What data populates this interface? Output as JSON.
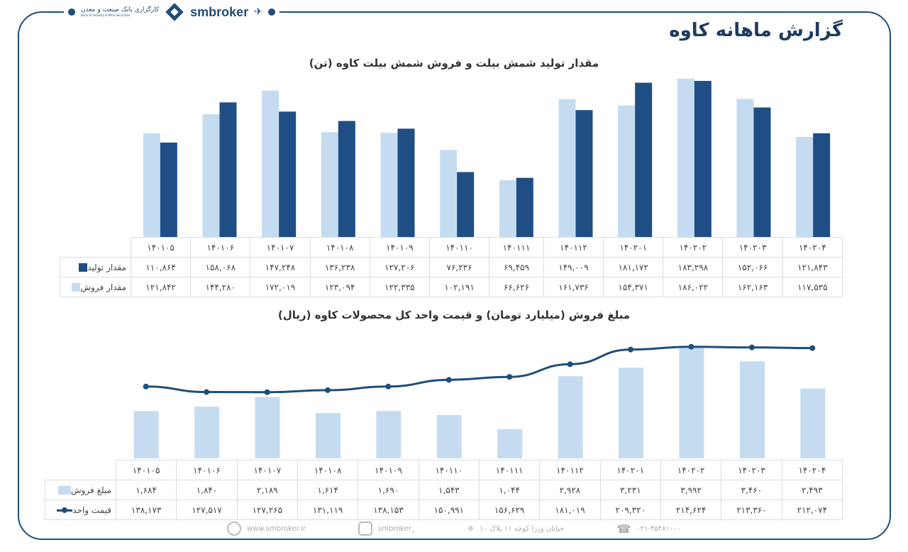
{
  "header": {
    "bank_logo_text": "کارگزاری بانک صنعت و معدن",
    "bank_logo_sub": "Bank of Industry & Mine Securities",
    "brand": "smbroker",
    "title": "گزارش ماهانه کاوه"
  },
  "colors": {
    "production": "#1f4e85",
    "sales": "#c5dcf0",
    "line": "#1f4e79",
    "frame": "#1f4e79"
  },
  "chart_data": [
    {
      "type": "bar",
      "title": "مقدار تولید شمش بیلت و فروش شمش بیلت کاوه (تن)",
      "categories": [
        "140105",
        "140106",
        "140107",
        "140108",
        "140109",
        "140110",
        "140111",
        "140112",
        "140201",
        "140202",
        "140203",
        "140204"
      ],
      "categories_display": [
        "۱۴۰۱۰۵",
        "۱۴۰۱۰۶",
        "۱۴۰۱۰۷",
        "۱۴۰۱۰۸",
        "۱۴۰۱۰۹",
        "۱۴۰۱۱۰",
        "۱۴۰۱۱۱",
        "۱۴۰۱۱۲",
        "۱۴۰۲۰۱",
        "۱۴۰۲۰۲",
        "۱۴۰۲۰۳",
        "۱۴۰۲۰۴"
      ],
      "ylim": [
        0,
        200000
      ],
      "grid": false,
      "legend": "table",
      "series": [
        {
          "name": "مقدار فروش",
          "color": "#c5dcf0",
          "values": [
            121842,
            144280,
            172019,
            123094,
            122335,
            102191,
            66626,
            161736,
            154371,
            186022,
            162163,
            117535
          ],
          "display": [
            "۱۲۱,۸۴۲",
            "۱۴۴,۲۸۰",
            "۱۷۲,۰۱۹",
            "۱۲۳,۰۹۴",
            "۱۲۲,۳۳۵",
            "۱۰۲,۱۹۱",
            "۶۶,۶۲۶",
            "۱۶۱,۷۳۶",
            "۱۵۴,۳۷۱",
            "۱۸۶,۰۲۲",
            "۱۶۲,۱۶۳",
            "۱۱۷,۵۳۵"
          ]
        },
        {
          "name": "مقدار تولید",
          "color": "#1f4e85",
          "values": [
            110864,
            158068,
            147248,
            136238,
            127206,
            76236,
            69459,
            149009,
            181172,
            183298,
            152066,
            121843
          ],
          "display": [
            "۱۱۰,۸۶۴",
            "۱۵۸,۰۶۸",
            "۱۴۷,۲۴۸",
            "۱۳۶,۲۳۸",
            "۱۲۷,۲۰۶",
            "۷۶,۲۳۶",
            "۶۹,۴۵۹",
            "۱۴۹,۰۰۹",
            "۱۸۱,۱۷۲",
            "۱۸۳,۲۹۸",
            "۱۵۲,۰۶۶",
            "۱۲۱,۸۴۳"
          ]
        }
      ]
    },
    {
      "type": "bar+line",
      "title": "مبلغ فروش (میلیارد تومان) و قیمت واحد کل محصولات کاوه (ریال)",
      "categories": [
        "140105",
        "140106",
        "140107",
        "140108",
        "140109",
        "140110",
        "140111",
        "140112",
        "140201",
        "140202",
        "140203",
        "140204"
      ],
      "categories_display": [
        "۱۴۰۱۰۵",
        "۱۴۰۱۰۶",
        "۱۴۰۱۰۷",
        "۱۴۰۱۰۸",
        "۱۴۰۱۰۹",
        "۱۴۰۱۱۰",
        "۱۴۰۱۱۱",
        "۱۴۰۱۱۲",
        "۱۴۰۲۰۱",
        "۱۴۰۲۰۲",
        "۱۴۰۲۰۳",
        "۱۴۰۲۰۴"
      ],
      "grid": false,
      "legend": "table",
      "series": [
        {
          "name": "مبلغ فروش",
          "type": "bar",
          "color": "#c5dcf0",
          "ylim": [
            0,
            4300
          ],
          "values": [
            1684,
            1840,
            2189,
            1614,
            1690,
            1543,
            1044,
            2928,
            3231,
            3992,
            3460,
            2493
          ],
          "display": [
            "۱,۶۸۴",
            "۱,۸۴۰",
            "۲,۱۸۹",
            "۱,۶۱۴",
            "۱,۶۹۰",
            "۱,۵۴۳",
            "۱,۰۴۴",
            "۲,۹۲۸",
            "۳,۲۳۱",
            "۳,۹۹۲",
            "۳,۴۶۰",
            "۲,۴۹۳"
          ]
        },
        {
          "name": "قیمت واحد",
          "type": "line",
          "color": "#1f4e79",
          "ylim": [
            0,
            232000
          ],
          "values": [
            138173,
            127517,
            127265,
            131119,
            138153,
            150991,
            156629,
            181019,
            209320,
            214624,
            213360,
            212074
          ],
          "display": [
            "۱۳۸,۱۷۳",
            "۱۲۷,۵۱۷",
            "۱۲۷,۲۶۵",
            "۱۳۱,۱۱۹",
            "۱۳۸,۱۵۳",
            "۱۵۰,۹۹۱",
            "۱۵۶,۶۲۹",
            "۱۸۱,۰۱۹",
            "۲۰۹,۳۲۰",
            "۲۱۴,۶۲۴",
            "۲۱۳,۳۶۰",
            "۲۱۲,۰۷۴"
          ]
        }
      ]
    }
  ],
  "footer": {
    "website": "www.smbroker.ir",
    "instagram": "smbroker_",
    "address": "خیابان وزرا کوچه ۱۱ پلاک ۱۰",
    "phone": "۰۲۱-۴۵۴۸۱۰۰۰"
  }
}
